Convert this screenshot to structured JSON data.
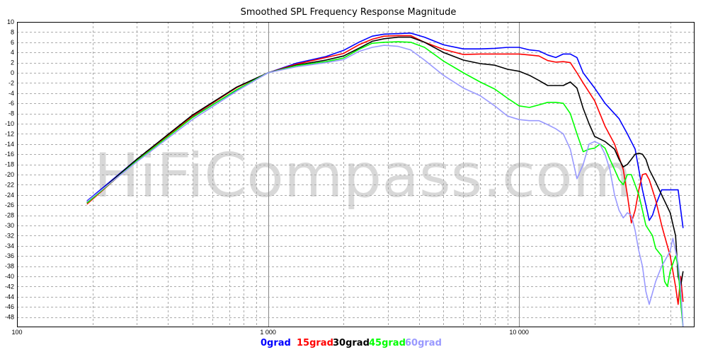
{
  "chart_data": {
    "type": "line",
    "title": "Smoothed SPL Frequency Response Magnitude",
    "watermark": "HiFiCompass.com",
    "x_scale": "log",
    "xlim": [
      100,
      50000
    ],
    "ylim": [
      -50,
      10
    ],
    "x_tick_labels": [
      {
        "value": 100,
        "label": "100"
      },
      {
        "value": 1000,
        "label": "1 000"
      },
      {
        "value": 10000,
        "label": "10 000"
      }
    ],
    "y_tick_labels": [
      10,
      8,
      6,
      4,
      2,
      0,
      -2,
      -4,
      -6,
      -8,
      -10,
      -12,
      -14,
      -16,
      -18,
      -20,
      -22,
      -24,
      -26,
      -28,
      -30,
      -32,
      -34,
      -36,
      -38,
      -40,
      -42,
      -44,
      -46,
      -48
    ],
    "grid": true,
    "legend_position": "bottom-center",
    "series": [
      {
        "name": "0grad",
        "color": "#0000ff",
        "x": [
          190,
          300,
          500,
          750,
          1000,
          1300,
          1700,
          2000,
          2300,
          2600,
          2900,
          3300,
          3700,
          4200,
          5000,
          6000,
          7000,
          8000,
          9000,
          10000,
          11000,
          12000,
          13000,
          14000,
          15000,
          16000,
          17000,
          18000,
          20000,
          22000,
          25000,
          27000,
          29000,
          30000,
          31000,
          32000,
          33000,
          34000,
          35000,
          37000,
          40000,
          43000,
          45000
        ],
        "y": [
          -25.2,
          -17,
          -8.7,
          -3.4,
          0,
          1.9,
          3.2,
          4.4,
          6,
          7.2,
          7.6,
          7.7,
          7.8,
          7,
          5.5,
          4.7,
          4.7,
          4.8,
          5,
          5,
          4.5,
          4.3,
          3.5,
          3,
          3.7,
          3.7,
          3,
          0,
          -3,
          -6,
          -9,
          -12,
          -15,
          -19,
          -23,
          -26,
          -29,
          -28,
          -26,
          -23,
          -23,
          -23,
          -30.5
        ]
      },
      {
        "name": "15grad",
        "color": "#ff0000",
        "x": [
          190,
          300,
          500,
          750,
          1000,
          1300,
          1700,
          2000,
          2300,
          2600,
          2900,
          3300,
          3700,
          4200,
          5000,
          6000,
          7000,
          8000,
          9000,
          10000,
          11000,
          12000,
          13000,
          14000,
          15000,
          16000,
          17000,
          18000,
          20000,
          22000,
          24000,
          26000,
          27000,
          28000,
          29000,
          30000,
          31000,
          32000,
          33000,
          35000,
          37000,
          40000,
          42000,
          43000,
          44000,
          45000
        ],
        "y": [
          -25.8,
          -17.2,
          -8.5,
          -2.9,
          0,
          1.7,
          3,
          3.8,
          5.5,
          6.6,
          7.2,
          7.3,
          7.3,
          6,
          4.6,
          3.6,
          3.7,
          3.7,
          3.7,
          3.7,
          3.5,
          3.3,
          2.4,
          2.1,
          2.2,
          2,
          0,
          -2,
          -5.5,
          -10.5,
          -14,
          -19,
          -24,
          -29.5,
          -27,
          -23,
          -20,
          -19.8,
          -21,
          -25,
          -30,
          -36,
          -42,
          -45.5,
          -40,
          -45
        ]
      },
      {
        "name": "30grad",
        "color": "#000000",
        "x": [
          190,
          300,
          500,
          750,
          1000,
          1300,
          1700,
          2000,
          2300,
          2600,
          2900,
          3300,
          3700,
          4200,
          5000,
          6000,
          7000,
          8000,
          9000,
          10000,
          11000,
          12000,
          13000,
          14000,
          15000,
          16000,
          17000,
          18000,
          19000,
          20000,
          22000,
          24000,
          25000,
          26000,
          27000,
          28000,
          29000,
          30000,
          31000,
          32000,
          33000,
          35000,
          37000,
          40000,
          42000,
          43000,
          44000,
          45000
        ],
        "y": [
          -25.5,
          -17,
          -8.3,
          -2.8,
          0,
          1.5,
          2.5,
          3.3,
          4.8,
          6.2,
          6.7,
          7,
          7,
          6,
          4,
          2.5,
          1.8,
          1.5,
          0.7,
          0.3,
          -0.5,
          -1.5,
          -2.5,
          -2.5,
          -2.5,
          -1.8,
          -3,
          -7,
          -10,
          -12.5,
          -13.5,
          -15,
          -17,
          -18.5,
          -18,
          -17,
          -16,
          -15.8,
          -16,
          -17,
          -19,
          -21.5,
          -24,
          -27.5,
          -32,
          -40,
          -42,
          -39
        ]
      },
      {
        "name": "45grad",
        "color": "#00ff00",
        "x": [
          190,
          300,
          500,
          750,
          1000,
          1300,
          1700,
          2000,
          2300,
          2600,
          2900,
          3300,
          3700,
          4200,
          5000,
          6000,
          7000,
          8000,
          9000,
          10000,
          11000,
          12000,
          13000,
          14000,
          15000,
          16000,
          17000,
          18000,
          19000,
          20000,
          21000,
          22000,
          23000,
          24000,
          25000,
          26000,
          27000,
          28000,
          29000,
          30000,
          31000,
          32000,
          33000,
          34000,
          35000,
          37000,
          38000,
          39000,
          40000,
          42000,
          43000,
          44000,
          45000
        ],
        "y": [
          -25.6,
          -17.3,
          -8.8,
          -3.3,
          0,
          1.4,
          2.2,
          2.9,
          4.6,
          5.8,
          6,
          6.1,
          6,
          5,
          2.3,
          0,
          -1.8,
          -3.2,
          -5,
          -6.5,
          -6.8,
          -6.3,
          -5.8,
          -5.8,
          -6,
          -8,
          -12,
          -15.5,
          -15,
          -14.8,
          -14,
          -14.8,
          -17,
          -19,
          -21,
          -22,
          -20,
          -20,
          -22,
          -24,
          -27,
          -30,
          -31,
          -32,
          -34.5,
          -36,
          -41,
          -42,
          -39,
          -36,
          -38,
          -45,
          -50
        ]
      },
      {
        "name": "60grad",
        "color": "#9999ff",
        "x": [
          190,
          300,
          500,
          750,
          1000,
          1300,
          1700,
          2000,
          2300,
          2600,
          2900,
          3300,
          3700,
          4200,
          5000,
          6000,
          7000,
          8000,
          9000,
          10000,
          11000,
          12000,
          13000,
          14000,
          15000,
          16000,
          17000,
          18000,
          19000,
          20000,
          21000,
          22000,
          23000,
          24000,
          25000,
          26000,
          27000,
          28000,
          29000,
          30000,
          31000,
          32000,
          33000,
          35000,
          37000,
          38000,
          39000,
          40000,
          41000,
          42000,
          43000,
          44000,
          45000
        ],
        "y": [
          -25.3,
          -17.5,
          -9.2,
          -3.6,
          0,
          1.2,
          2,
          2.6,
          4.2,
          5,
          5.4,
          5.2,
          4.5,
          2.5,
          -0.5,
          -3,
          -4.5,
          -6.5,
          -8.5,
          -9.2,
          -9.4,
          -9.4,
          -10.2,
          -11,
          -12,
          -15,
          -20.8,
          -18,
          -14,
          -13.5,
          -14,
          -16,
          -19,
          -24,
          -27,
          -28.5,
          -27.5,
          -28,
          -31,
          -35,
          -38,
          -43,
          -45.5,
          -41,
          -38,
          -37,
          -36,
          -35,
          -32.5,
          -35,
          -37.5,
          -42,
          -50
        ]
      }
    ]
  }
}
